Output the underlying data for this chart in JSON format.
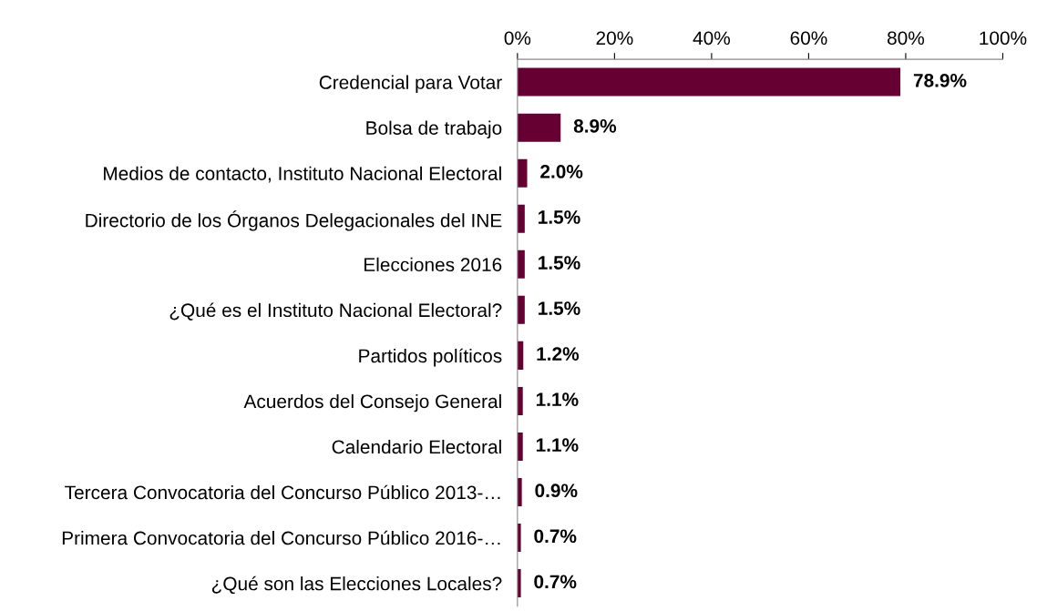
{
  "chart_data": {
    "type": "bar",
    "orientation": "horizontal",
    "categories": [
      "Credencial para Votar",
      "Bolsa de trabajo",
      "Medios de contacto, Instituto Nacional Electoral",
      "Directorio de los Órganos Delegacionales del INE",
      "Elecciones 2016",
      "¿Qué es el Instituto Nacional Electoral?",
      "Partidos políticos",
      "Acuerdos del Consejo General",
      "Calendario Electoral",
      "Tercera Convocatoria del Concurso Público 2013-…",
      "Primera Convocatoria del Concurso Público 2016-…",
      "¿Qué son las Elecciones Locales?"
    ],
    "values": [
      78.9,
      8.9,
      2.0,
      1.5,
      1.5,
      1.5,
      1.2,
      1.1,
      1.1,
      0.9,
      0.7,
      0.7
    ],
    "value_labels": [
      "78.9%",
      "8.9%",
      "2.0%",
      "1.5%",
      "1.5%",
      "1.5%",
      "1.2%",
      "1.1%",
      "1.1%",
      "0.9%",
      "0.7%",
      "0.7%"
    ],
    "color": "#660033",
    "xlim": [
      0,
      100
    ],
    "xticks": [
      {
        "value": 0,
        "label": "0%"
      },
      {
        "value": 20,
        "label": "20%"
      },
      {
        "value": 40,
        "label": "40%"
      },
      {
        "value": 60,
        "label": "60%"
      },
      {
        "value": 80,
        "label": "80%"
      },
      {
        "value": 100,
        "label": "100%"
      }
    ],
    "grid": false,
    "legend": false
  }
}
